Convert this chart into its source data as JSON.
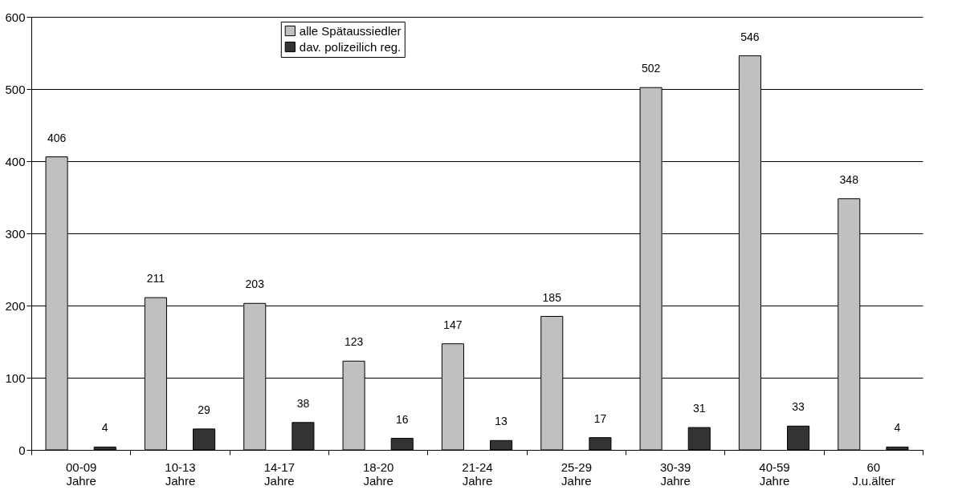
{
  "chart_data": {
    "type": "bar",
    "categories": [
      "00-09 Jahre",
      "10-13 Jahre",
      "14-17 Jahre",
      "18-20 Jahre",
      "21-24 Jahre",
      "25-29 Jahre",
      "30-39 Jahre",
      "40-59 Jahre",
      "60 J.u.älter"
    ],
    "series": [
      {
        "name": "alle Spätaussiedler",
        "color": "#c0c0c0",
        "values": [
          406,
          211,
          203,
          123,
          147,
          185,
          502,
          546,
          348
        ]
      },
      {
        "name": "dav. polizeilich reg.",
        "color": "#333333",
        "values": [
          4,
          29,
          38,
          16,
          13,
          17,
          31,
          33,
          4
        ]
      }
    ],
    "ylim": [
      0,
      600
    ],
    "yticks": [
      0,
      100,
      200,
      300,
      400,
      500,
      600
    ],
    "grid": "y",
    "legend": "top",
    "data_labels": true
  }
}
